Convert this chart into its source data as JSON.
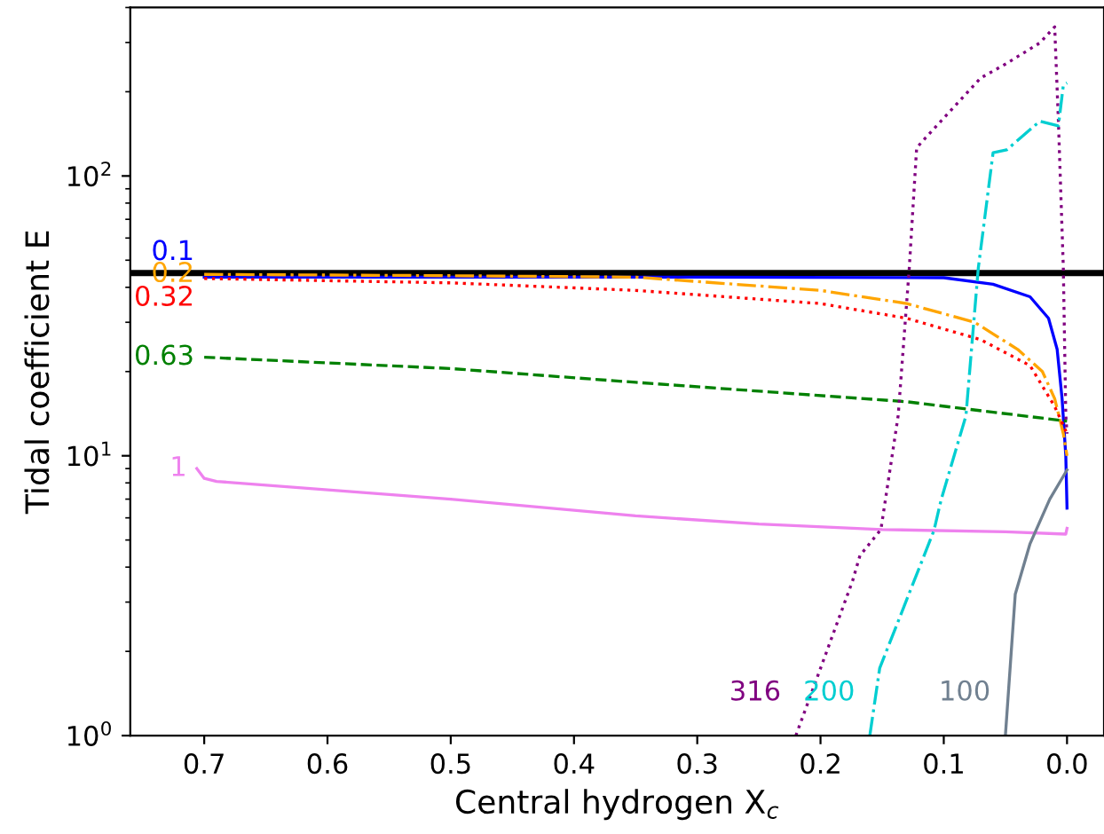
{
  "chart_data": {
    "type": "line",
    "xlabel": "Central hydrogen X$_{c}$",
    "ylabel": "Tidal coefficient E",
    "log": "y",
    "grid": false,
    "legend": false,
    "xlim": [
      0.76,
      -0.03
    ],
    "xticks": [
      {
        "value": 0.7,
        "label": "0.7"
      },
      {
        "value": 0.6,
        "label": "0.6"
      },
      {
        "value": 0.5,
        "label": "0.5"
      },
      {
        "value": 0.4,
        "label": "0.4"
      },
      {
        "value": 0.3,
        "label": "0.3"
      },
      {
        "value": 0.2,
        "label": "0.2"
      },
      {
        "value": 0.1,
        "label": "0.1"
      },
      {
        "value": 0.0,
        "label": "0.0"
      }
    ],
    "ylim": [
      1,
      400
    ],
    "yticks": [
      {
        "value": 1,
        "label": "10$^{0}$"
      },
      {
        "value": 10,
        "label": "10$^{1}$"
      },
      {
        "value": 100,
        "label": "10$^{2}$"
      }
    ],
    "ref_lines": [
      {
        "axis": "y",
        "value": 45,
        "color": "#000000",
        "line_style": "solid"
      }
    ],
    "series": [
      {
        "name": "0.1",
        "color": "#0000ff",
        "line_style": "solid",
        "x": [
          0.7,
          0.3,
          0.1,
          0.06,
          0.03,
          0.015,
          0.008,
          0.004,
          0.001,
          0
        ],
        "values": [
          43.5,
          43.5,
          43.3,
          41,
          37,
          31,
          24,
          16,
          10,
          6.5
        ]
      },
      {
        "name": "0.2",
        "color": "#ffa500",
        "line_style": "dashdot",
        "x": [
          0.7,
          0.5,
          0.35,
          0.2,
          0.13,
          0.075,
          0.04,
          0.02,
          0.01,
          0.003,
          0
        ],
        "values": [
          44.5,
          44,
          43.5,
          39,
          35,
          30,
          24,
          20,
          16,
          12,
          10
        ]
      },
      {
        "name": "0.32",
        "color": "#ff0000",
        "line_style": "dotted",
        "x": [
          0.7,
          0.5,
          0.35,
          0.2,
          0.13,
          0.07,
          0.03,
          0.01,
          0
        ],
        "values": [
          43,
          41.5,
          39,
          35,
          31,
          26,
          21,
          15,
          12
        ]
      },
      {
        "name": "0.63",
        "color": "#008000",
        "line_style": "dashed",
        "x": [
          0.7,
          0.5,
          0.35,
          0.13,
          0
        ],
        "values": [
          22.5,
          20.5,
          18.3,
          15.6,
          13.3
        ]
      },
      {
        "name": "1",
        "color": "#ee82ee",
        "line_style": "solid",
        "x": [
          0.706,
          0.7,
          0.69,
          0.5,
          0.35,
          0.25,
          0.15,
          0.05,
          0.001,
          0
        ],
        "values": [
          9.0,
          8.3,
          8.1,
          7.0,
          6.1,
          5.7,
          5.45,
          5.35,
          5.25,
          5.5
        ]
      },
      {
        "name": "316",
        "color": "#800080",
        "line_style": "dotted",
        "x": [
          0.22,
          0.174,
          0.168,
          0.151,
          0.137,
          0.128,
          0.122,
          0.118,
          0.07,
          0.05,
          0.022,
          0.01,
          0.007,
          0.003,
          0.001,
          0
        ],
        "values": [
          1,
          3.57,
          4.4,
          5.45,
          13.9,
          46.8,
          126,
          132,
          224,
          251,
          299,
          341,
          157,
          47,
          14,
          12
        ]
      },
      {
        "name": "200",
        "color": "#00ced1",
        "line_style": "dashdot",
        "x": [
          0.16,
          0.152,
          0.108,
          0.102,
          0.082,
          0.072,
          0.06,
          0.049,
          0.022,
          0.007,
          0.003,
          0
        ],
        "values": [
          1,
          1.74,
          5.4,
          7.0,
          13.9,
          46.8,
          121,
          124,
          157,
          151,
          211,
          215
        ]
      },
      {
        "name": "100",
        "color": "#708090",
        "line_style": "solid",
        "x": [
          0.05,
          0.042,
          0.03,
          0.014,
          0
        ],
        "values": [
          1,
          3.2,
          4.85,
          7.0,
          8.9
        ]
      }
    ]
  }
}
